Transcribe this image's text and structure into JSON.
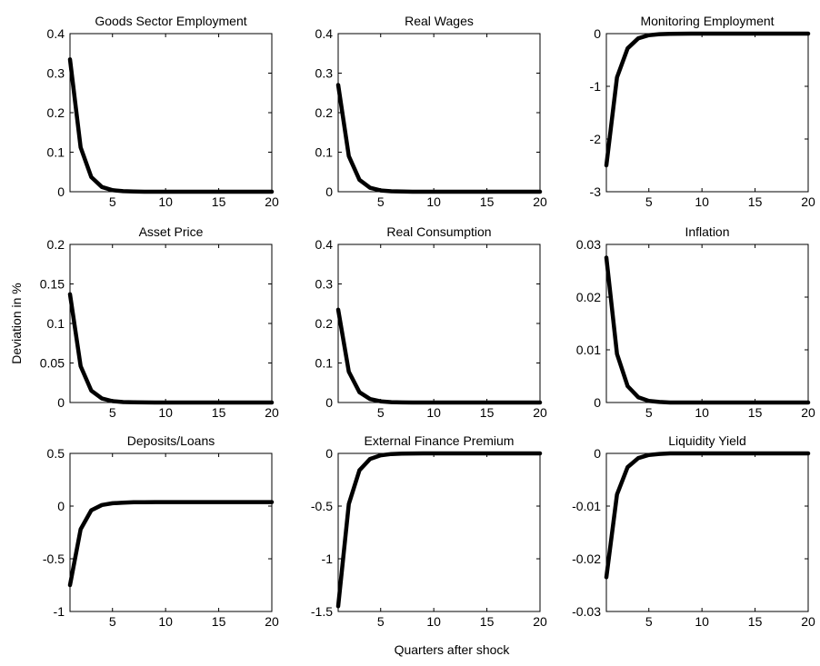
{
  "figure": {
    "ylabel": "Deviation in %",
    "xlabel": "Quarters after shock"
  },
  "chart_data": [
    {
      "type": "line",
      "title": "Goods Sector Employment",
      "xlim": [
        1,
        20
      ],
      "ylim": [
        0,
        0.4
      ],
      "xticks": [
        5,
        10,
        15,
        20
      ],
      "yticks": [
        0,
        0.1,
        0.2,
        0.3,
        0.4
      ],
      "yticklabels": [
        "0",
        "0.1",
        "0.2",
        "0.3",
        "0.4"
      ],
      "x": [
        1,
        2,
        3,
        4,
        5,
        6,
        7,
        8,
        9,
        10,
        11,
        12,
        13,
        14,
        15,
        16,
        17,
        18,
        19,
        20
      ],
      "values": [
        0.335,
        0.112,
        0.037,
        0.012,
        0.004,
        0.0013,
        0.0004,
        0.0001,
        0,
        0,
        0,
        0,
        0,
        0,
        0,
        0,
        0,
        0,
        0,
        0
      ]
    },
    {
      "type": "line",
      "title": "Real Wages",
      "xlim": [
        1,
        20
      ],
      "ylim": [
        0,
        0.4
      ],
      "xticks": [
        5,
        10,
        15,
        20
      ],
      "yticks": [
        0,
        0.1,
        0.2,
        0.3,
        0.4
      ],
      "yticklabels": [
        "0",
        "0.1",
        "0.2",
        "0.3",
        "0.4"
      ],
      "x": [
        1,
        2,
        3,
        4,
        5,
        6,
        7,
        8,
        9,
        10,
        11,
        12,
        13,
        14,
        15,
        16,
        17,
        18,
        19,
        20
      ],
      "values": [
        0.27,
        0.09,
        0.03,
        0.01,
        0.0033,
        0.0011,
        0.0004,
        0.0001,
        0,
        0,
        0,
        0,
        0,
        0,
        0,
        0,
        0,
        0,
        0,
        0
      ]
    },
    {
      "type": "line",
      "title": "Monitoring Employment",
      "xlim": [
        1,
        20
      ],
      "ylim": [
        -3,
        0
      ],
      "xticks": [
        5,
        10,
        15,
        20
      ],
      "yticks": [
        -3,
        -2,
        -1,
        0
      ],
      "yticklabels": [
        "-3",
        "-2",
        "-1",
        "0"
      ],
      "x": [
        1,
        2,
        3,
        4,
        5,
        6,
        7,
        8,
        9,
        10,
        11,
        12,
        13,
        14,
        15,
        16,
        17,
        18,
        19,
        20
      ],
      "values": [
        -2.5,
        -0.83,
        -0.28,
        -0.09,
        -0.03,
        -0.01,
        -0.003,
        -0.001,
        0,
        0,
        0,
        0,
        0,
        0,
        0,
        0,
        0,
        0,
        0,
        0
      ]
    },
    {
      "type": "line",
      "title": "Asset Price",
      "xlim": [
        1,
        20
      ],
      "ylim": [
        0,
        0.2
      ],
      "xticks": [
        5,
        10,
        15,
        20
      ],
      "yticks": [
        0,
        0.05,
        0.1,
        0.15,
        0.2
      ],
      "yticklabels": [
        "0",
        "0.05",
        "0.1",
        "0.15",
        "0.2"
      ],
      "x": [
        1,
        2,
        3,
        4,
        5,
        6,
        7,
        8,
        9,
        10,
        11,
        12,
        13,
        14,
        15,
        16,
        17,
        18,
        19,
        20
      ],
      "values": [
        0.137,
        0.046,
        0.015,
        0.005,
        0.0017,
        0.0006,
        0.0002,
        0.0001,
        0,
        0,
        0,
        0,
        0,
        0,
        0,
        0,
        0,
        0,
        0,
        0
      ]
    },
    {
      "type": "line",
      "title": "Real Consumption",
      "xlim": [
        1,
        20
      ],
      "ylim": [
        0,
        0.4
      ],
      "xticks": [
        5,
        10,
        15,
        20
      ],
      "yticks": [
        0,
        0.1,
        0.2,
        0.3,
        0.4
      ],
      "yticklabels": [
        "0",
        "0.1",
        "0.2",
        "0.3",
        "0.4"
      ],
      "x": [
        1,
        2,
        3,
        4,
        5,
        6,
        7,
        8,
        9,
        10,
        11,
        12,
        13,
        14,
        15,
        16,
        17,
        18,
        19,
        20
      ],
      "values": [
        0.235,
        0.078,
        0.026,
        0.0087,
        0.0029,
        0.001,
        0.0003,
        0.0001,
        0,
        0,
        0,
        0,
        0,
        0,
        0,
        0,
        0,
        0,
        0,
        0
      ]
    },
    {
      "type": "line",
      "title": "Inflation",
      "xlim": [
        1,
        20
      ],
      "ylim": [
        0,
        0.03
      ],
      "xticks": [
        5,
        10,
        15,
        20
      ],
      "yticks": [
        0,
        0.01,
        0.02,
        0.03
      ],
      "yticklabels": [
        "0",
        "0.01",
        "0.02",
        "0.03"
      ],
      "x": [
        1,
        2,
        3,
        4,
        5,
        6,
        7,
        8,
        9,
        10,
        11,
        12,
        13,
        14,
        15,
        16,
        17,
        18,
        19,
        20
      ],
      "values": [
        0.0275,
        0.0092,
        0.0031,
        0.001,
        0.0003,
        0.0001,
        0,
        0,
        0,
        0,
        0,
        0,
        0,
        0,
        0,
        0,
        0,
        0,
        0,
        0
      ]
    },
    {
      "type": "line",
      "title": "Deposits/Loans",
      "xlim": [
        1,
        20
      ],
      "ylim": [
        -1,
        0.5
      ],
      "xticks": [
        5,
        10,
        15,
        20
      ],
      "yticks": [
        -1,
        -0.5,
        0,
        0.5
      ],
      "yticklabels": [
        "-1",
        "-0.5",
        "0",
        "0.5"
      ],
      "x": [
        1,
        2,
        3,
        4,
        5,
        6,
        7,
        8,
        9,
        10,
        11,
        12,
        13,
        14,
        15,
        16,
        17,
        18,
        19,
        20
      ],
      "values": [
        -0.75,
        -0.22,
        -0.04,
        0.01,
        0.027,
        0.033,
        0.036,
        0.037,
        0.038,
        0.038,
        0.038,
        0.038,
        0.038,
        0.038,
        0.038,
        0.038,
        0.038,
        0.038,
        0.038,
        0.038
      ]
    },
    {
      "type": "line",
      "title": "External Finance Premium",
      "xlim": [
        1,
        20
      ],
      "ylim": [
        -1.5,
        0
      ],
      "xticks": [
        5,
        10,
        15,
        20
      ],
      "yticks": [
        -1.5,
        -1,
        -0.5,
        0
      ],
      "yticklabels": [
        "-1.5",
        "-1",
        "-0.5",
        "0"
      ],
      "x": [
        1,
        2,
        3,
        4,
        5,
        6,
        7,
        8,
        9,
        10,
        11,
        12,
        13,
        14,
        15,
        16,
        17,
        18,
        19,
        20
      ],
      "values": [
        -1.45,
        -0.48,
        -0.16,
        -0.053,
        -0.018,
        -0.006,
        -0.002,
        -0.0007,
        0,
        0,
        0,
        0,
        0,
        0,
        0,
        0,
        0,
        0,
        0,
        0
      ]
    },
    {
      "type": "line",
      "title": "Liquidity Yield",
      "xlim": [
        1,
        20
      ],
      "ylim": [
        -0.03,
        0
      ],
      "xticks": [
        5,
        10,
        15,
        20
      ],
      "yticks": [
        -0.03,
        -0.02,
        -0.01,
        0
      ],
      "yticklabels": [
        "-0.03",
        "-0.02",
        "-0.01",
        "0"
      ],
      "x": [
        1,
        2,
        3,
        4,
        5,
        6,
        7,
        8,
        9,
        10,
        11,
        12,
        13,
        14,
        15,
        16,
        17,
        18,
        19,
        20
      ],
      "values": [
        -0.0235,
        -0.0078,
        -0.0026,
        -0.0009,
        -0.0003,
        -0.0001,
        0,
        0,
        0,
        0,
        0,
        0,
        0,
        0,
        0,
        0,
        0,
        0,
        0,
        0
      ]
    }
  ]
}
